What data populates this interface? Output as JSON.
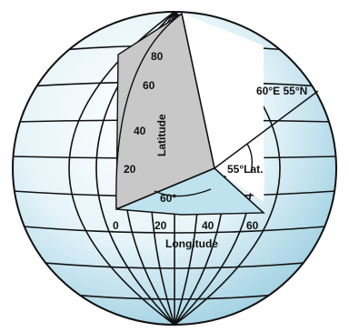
{
  "labels": {
    "lat_80": "80",
    "lat_60": "60",
    "lat_40": "40",
    "lat_20": "20",
    "latitude": "Latitude",
    "lon_0": "0",
    "lon_20": "20",
    "lon_40": "40",
    "lon_60": "60",
    "longitude": "Longitude",
    "point": "60°E 55°N",
    "lat_angle": "55°Lat.",
    "lon_angle": "60°"
  },
  "colors": {
    "ocean": "#d7eef6",
    "cutaway_lat": "#c8c8c8",
    "cutaway_eq": "#bfe3ee",
    "lines": "#111111"
  }
}
